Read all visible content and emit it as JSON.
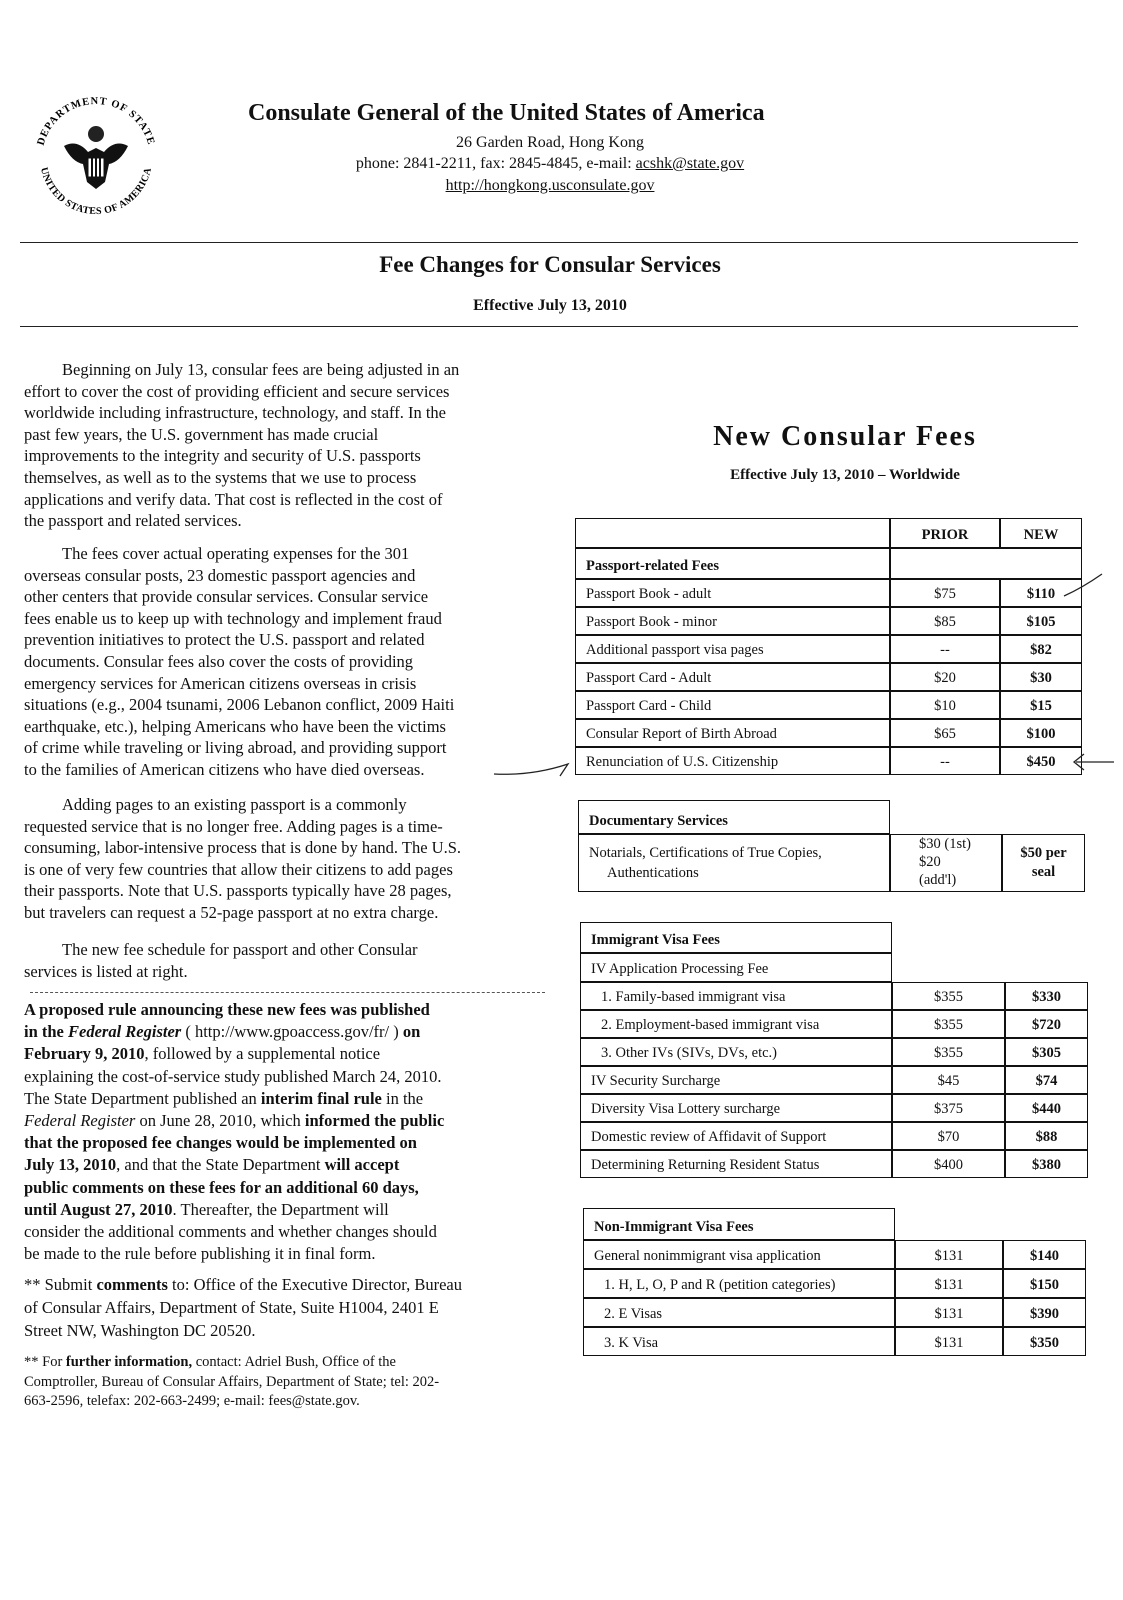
{
  "header": {
    "seal_text_top": "DEPARTMENT OF STATE",
    "seal_text_bottom": "UNITED STATES OF AMERICA",
    "title": "Consulate General of the United States of America",
    "address": "26 Garden Road, Hong Kong",
    "contact_prefix": "phone: 2841-2211, fax: 2845-4845, e-mail: ",
    "email": "acshk@state.gov",
    "url": "http://hongkong.usconsulate.gov"
  },
  "doc": {
    "title": "Fee Changes for Consular Services",
    "effective": "Effective July 13, 2010"
  },
  "left_column": {
    "paragraphs": [
      [
        "Beginning on July 13, consular fees are being adjusted in an",
        "effort to cover the cost of providing efficient and secure services",
        "worldwide including infrastructure, technology, and staff.  In the",
        "past few years, the U.S. government has made crucial",
        "improvements to the integrity and security of U.S. passports",
        "themselves, as well as to the systems that we use to process",
        "applications and verify data.  That cost is reflected in the cost of",
        "the passport and related services."
      ],
      [
        "The fees cover actual operating expenses for the 301",
        "overseas consular posts, 23 domestic passport agencies and",
        "other centers that provide consular services.  Consular service",
        "fees enable us to keep up with technology and implement fraud",
        "prevention initiatives to protect the U.S. passport and related",
        "documents.  Consular fees also cover the costs of providing",
        "emergency services for American citizens overseas in crisis",
        "situations (e.g., 2004 tsunami, 2006 Lebanon conflict, 2009 Haiti",
        "earthquake, etc.), helping Americans who have been the victims",
        "of crime while traveling or living abroad, and providing support",
        "to the families of American citizens who have died overseas."
      ],
      [
        "Adding pages to an existing passport is a commonly",
        "requested service that is no longer free. Adding pages is a time-",
        "consuming, labor-intensive process that is done by hand. The U.S.",
        "is one of very few countries that allow their citizens to add pages",
        "their passports. Note that U.S. passports typically have 28 pages,",
        "but travelers can request a 52-page passport at no extra charge."
      ],
      [
        "The new fee schedule for passport and other Consular",
        "services is listed at right."
      ]
    ],
    "rule_paragraph": [
      [
        {
          "t": "A proposed rule announcing these new fees was published",
          "s": "b"
        }
      ],
      [
        {
          "t": "in the ",
          "s": "b"
        },
        {
          "t": "Federal Register",
          "s": "bi"
        },
        {
          "t": " ( http://www.gpoaccess.gov/fr/ ) ",
          "s": ""
        },
        {
          "t": "on",
          "s": "b"
        }
      ],
      [
        {
          "t": "February 9, 2010",
          "s": "b"
        },
        {
          "t": ", followed by a supplemental notice",
          "s": ""
        }
      ],
      [
        {
          "t": "explaining the cost-of-service study published March 24, 2010.",
          "s": ""
        }
      ],
      [
        {
          "t": "The State Department published an ",
          "s": ""
        },
        {
          "t": "interim final rule",
          "s": "b"
        },
        {
          "t": " in the",
          "s": ""
        }
      ],
      [
        {
          "t": "Federal Register",
          "s": "i"
        },
        {
          "t": " on June 28, 2010, which ",
          "s": ""
        },
        {
          "t": "informed the public",
          "s": "b"
        }
      ],
      [
        {
          "t": "that the proposed fee changes would be implemented on",
          "s": "b"
        }
      ],
      [
        {
          "t": "July 13, 2010",
          "s": "b"
        },
        {
          "t": ", and that the State Department ",
          "s": ""
        },
        {
          "t": "will accept",
          "s": "b"
        }
      ],
      [
        {
          "t": "public comments on these fees for an additional 60 days,",
          "s": "b"
        }
      ],
      [
        {
          "t": "until August 27, 2010",
          "s": "b"
        },
        {
          "t": ".  Thereafter, the Department will",
          "s": ""
        }
      ],
      [
        {
          "t": "consider the additional comments and whether changes should",
          "s": ""
        }
      ],
      [
        {
          "t": "be made to the rule before publishing it in final form.",
          "s": ""
        }
      ]
    ],
    "submit_paragraph": [
      [
        {
          "t": "** Submit ",
          "s": ""
        },
        {
          "t": "comments",
          "s": "b"
        },
        {
          "t": " to: Office of the Executive Director, Bureau",
          "s": ""
        }
      ],
      [
        {
          "t": "of Consular Affairs, Department of State, Suite H1004, 2401 E",
          "s": ""
        }
      ],
      [
        {
          "t": "Street NW, Washington DC 20520.",
          "s": ""
        }
      ]
    ],
    "info_paragraph": [
      [
        {
          "t": "** For ",
          "s": ""
        },
        {
          "t": "further information,",
          "s": "b"
        },
        {
          "t": " contact: Adriel Bush, Office of the",
          "s": ""
        }
      ],
      [
        {
          "t": "Comptroller, Bureau of Consular Affairs, Department of State; tel: 202-",
          "s": ""
        }
      ],
      [
        {
          "t": "663-2596, telefax: 202-663-2499; e-mail: fees@state.gov.",
          "s": ""
        }
      ]
    ]
  },
  "fees": {
    "title": "New Consular Fees",
    "subtitle": "Effective July 13, 2010 – Worldwide",
    "columns": [
      "PRIOR",
      "NEW"
    ],
    "tables": [
      {
        "section": "Passport-related Fees",
        "rows": [
          {
            "label": "Passport Book - adult",
            "prior": "$75",
            "new": "$110"
          },
          {
            "label": "Passport Book - minor",
            "prior": "$85",
            "new": "$105"
          },
          {
            "label": "Additional passport visa pages",
            "prior": "--",
            "new": "$82"
          },
          {
            "label": "Passport Card - Adult",
            "prior": "$20",
            "new": "$30"
          },
          {
            "label": "Passport Card - Child",
            "prior": "$10",
            "new": "$15"
          },
          {
            "label": "Consular Report of Birth Abroad",
            "prior": "$65",
            "new": "$100"
          },
          {
            "label": "Renunciation of U.S. Citizenship",
            "prior": "--",
            "new": "$450"
          }
        ]
      },
      {
        "section": "Documentary Services",
        "rows": [
          {
            "label": "Notarials, Certifications of True Copies,",
            "label2": "Authentications",
            "prior": "$30 (1st)",
            "prior2": "$20",
            "prior3": "(add'l)",
            "new": "$50 per",
            "new2": "seal"
          }
        ]
      },
      {
        "section": "Immigrant Visa Fees",
        "subsection": "IV Application Processing Fee",
        "rows": [
          {
            "label": "1.  Family-based immigrant visa",
            "prior": "$355",
            "new": "$330"
          },
          {
            "label": "2.  Employment-based immigrant visa",
            "prior": "$355",
            "new": "$720"
          },
          {
            "label": "3.  Other IVs (SIVs, DVs, etc.)",
            "prior": "$355",
            "new": "$305"
          },
          {
            "label": "IV Security Surcharge",
            "prior": "$45",
            "new": "$74"
          },
          {
            "label": "Diversity Visa Lottery surcharge",
            "prior": "$375",
            "new": "$440"
          },
          {
            "label": "Domestic review of Affidavit of Support",
            "prior": "$70",
            "new": "$88"
          },
          {
            "label": "Determining Returning Resident Status",
            "prior": "$400",
            "new": "$380"
          }
        ]
      },
      {
        "section": "Non-Immigrant Visa Fees",
        "rows": [
          {
            "label": "General nonimmigrant visa application",
            "prior": "$131",
            "new": "$140"
          },
          {
            "label": "1.  H, L, O, P and R (petition categories)",
            "prior": "$131",
            "new": "$150"
          },
          {
            "label": "2.  E Visas",
            "prior": "$131",
            "new": "$390"
          },
          {
            "label": "3.  K Visa",
            "prior": "$131",
            "new": "$350"
          }
        ]
      }
    ]
  }
}
